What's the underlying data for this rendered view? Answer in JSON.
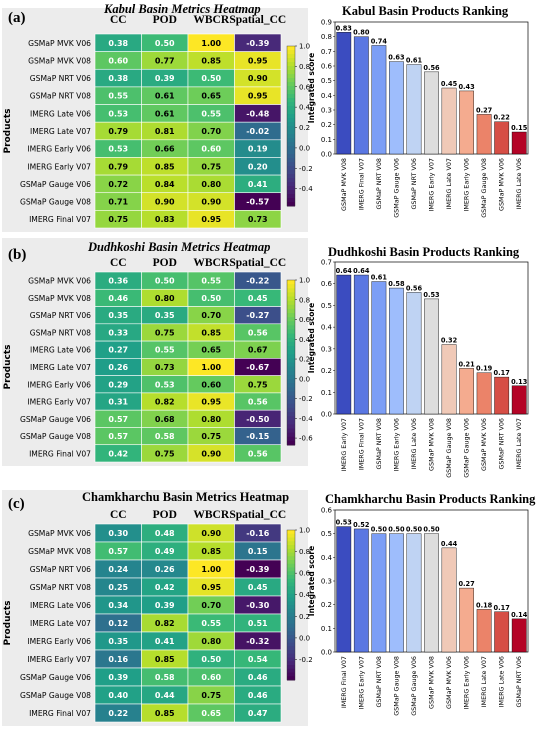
{
  "panels": [
    {
      "label": "(a)",
      "heatmap_title": "Kabul Basin Metrics Heatmap",
      "ranking_title": "Kabul Basin Products Ranking"
    },
    {
      "label": "(b)",
      "heatmap_title": "Dudhkoshi Basin Metrics Heatmap",
      "ranking_title": "Dudhkoshi Basin Products Ranking"
    },
    {
      "label": "(c)",
      "heatmap_title": "Chamkharchu Basin Metrics Heatmap",
      "ranking_title": "Chamkharchu Basin Products Ranking"
    }
  ],
  "colors": {
    "colormap": "viridis",
    "shading": "#ececec",
    "ranking_bars": "blue-to-red diverging (coolwarm)"
  },
  "chart_data": [
    {
      "type": "heatmap",
      "title": "Kabul Basin Metrics Heatmap",
      "ylabel": "Products",
      "columns": [
        "CC",
        "POD",
        "WBCR",
        "Spatial_CC"
      ],
      "rows": [
        "GSMaP MVK V06",
        "GSMaP MVK V08",
        "GSMaP NRT V06",
        "GSMaP NRT V08",
        "IMERG Late V06",
        "IMERG Late V07",
        "IMERG Early V06",
        "IMERG Early V07",
        "GSMaP Gauge V06",
        "GSMaP Gauge V08",
        "IMERG Final V07"
      ],
      "values": [
        [
          0.38,
          0.5,
          1.0,
          -0.39
        ],
        [
          0.6,
          0.77,
          0.85,
          0.95
        ],
        [
          0.38,
          0.39,
          0.5,
          0.9
        ],
        [
          0.55,
          0.61,
          0.65,
          0.95
        ],
        [
          0.53,
          0.61,
          0.55,
          -0.48
        ],
        [
          0.79,
          0.81,
          0.7,
          -0.02
        ],
        [
          0.53,
          0.66,
          0.6,
          0.19
        ],
        [
          0.79,
          0.85,
          0.75,
          0.2
        ],
        [
          0.72,
          0.84,
          0.8,
          0.41
        ],
        [
          0.71,
          0.9,
          0.9,
          -0.57
        ],
        [
          0.75,
          0.83,
          0.95,
          0.73
        ]
      ],
      "vmin": -0.57,
      "vmax": 1.0,
      "colorbar_ticks": [
        1.0,
        0.8,
        0.6,
        0.4,
        0.2,
        0.0,
        -0.2,
        -0.4
      ]
    },
    {
      "type": "bar",
      "title": "Kabul Basin Products Ranking",
      "ylabel": "Integrated score",
      "categories": [
        "GSMaP MVK V08",
        "IMERG Final V07",
        "GSMaP NRT V08",
        "GSMaP Gauge V06",
        "GSMaP NRT V06",
        "IMERG Early V07",
        "IMERG Late V07",
        "IMERG Early V06",
        "GSMaP Gauge V08",
        "GSMaP MVK V06",
        "IMERG Late V06"
      ],
      "values": [
        0.83,
        0.8,
        0.74,
        0.63,
        0.61,
        0.56,
        0.45,
        0.43,
        0.27,
        0.22,
        0.15
      ],
      "ylim": [
        0,
        0.9
      ]
    },
    {
      "type": "heatmap",
      "title": "Dudhkoshi Basin Metrics Heatmap",
      "ylabel": "Products",
      "columns": [
        "CC",
        "POD",
        "WBCR",
        "Spatial_CC"
      ],
      "rows": [
        "GSMaP MVK V06",
        "GSMaP MVK V08",
        "GSMaP NRT V06",
        "GSMaP NRT V08",
        "IMERG Late V06",
        "IMERG Late V07",
        "IMERG Early V06",
        "IMERG Early V07",
        "GSMaP Gauge V06",
        "GSMaP Gauge V08",
        "IMERG Final V07"
      ],
      "values": [
        [
          0.36,
          0.5,
          0.55,
          -0.22
        ],
        [
          0.46,
          0.8,
          0.5,
          0.45
        ],
        [
          0.35,
          0.35,
          0.7,
          -0.27
        ],
        [
          0.33,
          0.75,
          0.85,
          0.56
        ],
        [
          0.27,
          0.55,
          0.65,
          0.67
        ],
        [
          0.26,
          0.73,
          1.0,
          -0.67
        ],
        [
          0.29,
          0.53,
          0.6,
          0.75
        ],
        [
          0.31,
          0.82,
          0.95,
          0.56
        ],
        [
          0.57,
          0.68,
          0.8,
          -0.5
        ],
        [
          0.57,
          0.58,
          0.75,
          -0.15
        ],
        [
          0.42,
          0.75,
          0.9,
          0.56
        ]
      ],
      "vmin": -0.67,
      "vmax": 1.0,
      "colorbar_ticks": [
        1.0,
        0.8,
        0.6,
        0.4,
        0.2,
        0.0,
        -0.2,
        -0.4,
        -0.6
      ]
    },
    {
      "type": "bar",
      "title": "Dudhkoshi Basin Products Ranking",
      "ylabel": "Integrated score",
      "categories": [
        "IMERG Early V07",
        "IMERG Final V07",
        "GSMaP NRT V08",
        "IMERG Early V06",
        "IMERG Late V06",
        "GSMaP MVK V08",
        "GSMaP Gauge V08",
        "GSMaP Gauge V06",
        "GSMaP MVK V06",
        "GSMaP NRT V06",
        "IMERG Late V07"
      ],
      "values": [
        0.64,
        0.64,
        0.61,
        0.58,
        0.56,
        0.53,
        0.32,
        0.21,
        0.19,
        0.17,
        0.13
      ],
      "ylim": [
        0,
        0.7
      ]
    },
    {
      "type": "heatmap",
      "title": "Chamkharchu Basin Metrics Heatmap",
      "ylabel": "Products",
      "columns": [
        "CC",
        "POD",
        "WBCR",
        "Spatial_CC"
      ],
      "rows": [
        "GSMaP MVK V06",
        "GSMaP MVK V08",
        "GSMaP NRT V06",
        "GSMaP NRT V08",
        "IMERG Late V06",
        "IMERG Late V07",
        "IMERG Early V06",
        "IMERG Early V07",
        "GSMaP Gauge V06",
        "GSMaP Gauge V08",
        "IMERG Final V07"
      ],
      "values": [
        [
          0.3,
          0.48,
          0.9,
          -0.16
        ],
        [
          0.57,
          0.49,
          0.85,
          0.15
        ],
        [
          0.24,
          0.26,
          1.0,
          -0.39
        ],
        [
          0.25,
          0.42,
          0.95,
          0.45
        ],
        [
          0.34,
          0.39,
          0.7,
          -0.3
        ],
        [
          0.12,
          0.82,
          0.55,
          0.51
        ],
        [
          0.35,
          0.41,
          0.8,
          -0.32
        ],
        [
          0.16,
          0.85,
          0.5,
          0.54
        ],
        [
          0.39,
          0.58,
          0.6,
          0.46
        ],
        [
          0.4,
          0.44,
          0.75,
          0.46
        ],
        [
          0.22,
          0.85,
          0.65,
          0.47
        ]
      ],
      "vmin": -0.39,
      "vmax": 1.0,
      "colorbar_ticks": [
        1.0,
        0.8,
        0.6,
        0.4,
        0.2,
        0.0,
        -0.2
      ]
    },
    {
      "type": "bar",
      "title": "Chamkharchu Basin Products Ranking",
      "ylabel": "Integrated score",
      "categories": [
        "IMERG Final V07",
        "IMERG Early V07",
        "GSMaP NRT V08",
        "GSMaP Gauge V08",
        "GSMaP Gauge V06",
        "GSMaP MVK V08",
        "GSMaP MVK V06",
        "IMERG Early V06",
        "IMERG Late V07",
        "IMERG Late V06",
        "GSMaP NRT V06"
      ],
      "values": [
        0.53,
        0.52,
        0.5,
        0.5,
        0.5,
        0.5,
        0.44,
        0.27,
        0.18,
        0.17,
        0.14
      ],
      "ylim": [
        0,
        0.6
      ]
    }
  ]
}
